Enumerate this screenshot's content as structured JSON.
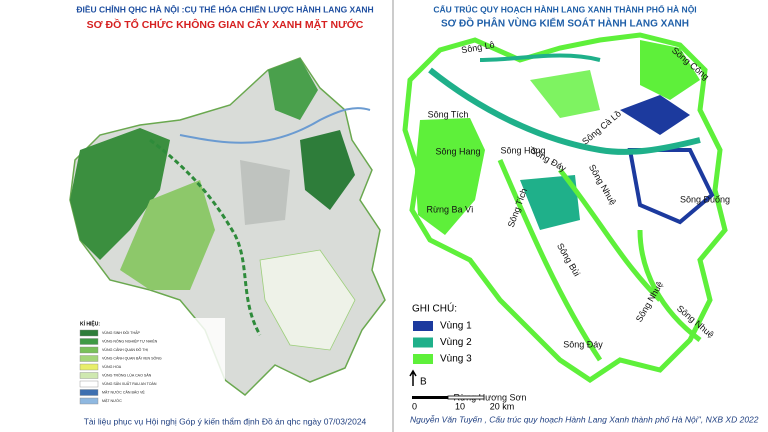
{
  "left": {
    "title": "ĐIỀU CHỈNH QHC HÀ NỘI :CỤ THỂ HÓA CHIẾN LƯỢC HÀNH LANG XANH",
    "subtitle": "SƠ ĐỒ TỔ CHỨC KHÔNG GIAN CÂY XANH MẶT NƯỚC",
    "legend": {
      "title": "KÍ HIỆU:",
      "items": [
        {
          "label": "VÙNG SINH ĐỒI THẤP",
          "color": "#2e7d3a"
        },
        {
          "label": "VÙNG NÔNG NGHIỆP TỰ NHIÊN",
          "color": "#3f9a45"
        },
        {
          "label": "VÙNG CẢNH QUAN ĐÔ THỊ",
          "color": "#79c05a"
        },
        {
          "label": "VÙNG CẢNH QUAN BÃI VEN SÔNG",
          "color": "#a5d67a"
        },
        {
          "label": "VÙNG HOA",
          "color": "#e8ee6a"
        },
        {
          "label": "VÙNG TRỒNG LÚA CAO SẢN",
          "color": "#cfe8b0"
        },
        {
          "label": "VÙNG SẢN XUẤT RAU AN TOÀN",
          "color": "#ffffff"
        },
        {
          "label": "MẶT NƯỚC CẦN BẢO VỆ",
          "color": "#3d6fb0"
        },
        {
          "label": "MẶT NƯỚC",
          "color": "#8fb8e0"
        }
      ]
    },
    "footer": "Tài liệu phục vụ Hội nghị Góp ý kiến thẩm định Đồ án qhc ngày 07/03/2024"
  },
  "right": {
    "title": "CẤU TRÚC QUY HOẠCH HÀNH LANG XANH THÀNH PHỐ HÀ NỘI",
    "subtitle": "SƠ ĐỒ PHÂN VÙNG KIỂM SOÁT HÀNH LANG XANH",
    "labels": [
      "Sông Lô",
      "Sông Công",
      "Sông Tích",
      "Sông Hồng",
      "Sông Cà Lồ",
      "Sông Hang",
      "Sông Đáy",
      "Sông Nhuệ",
      "Rừng Ba Vì",
      "Sông Tích",
      "Sông Đuống",
      "Sông Bùi",
      "Sông Nhuệ",
      "Sông Nhuệ",
      "Sông Đáy",
      "Rừng Hương Sơn"
    ],
    "legend": {
      "title": "GHI CHÚ:",
      "items": [
        {
          "label": "Vùng 1",
          "color": "#1c3a9e"
        },
        {
          "label": "Vùng 2",
          "color": "#1fb08a"
        },
        {
          "label": "Vùng 3",
          "color": "#5ef03a"
        }
      ]
    },
    "north": "B",
    "scale": [
      "0",
      "10",
      "20 km"
    ],
    "citation": "Nguyễn Văn Tuyến , Cấu trúc quy hoạch Hành Lang Xanh thành phố Hà Nội'', NXB XD 2022"
  }
}
